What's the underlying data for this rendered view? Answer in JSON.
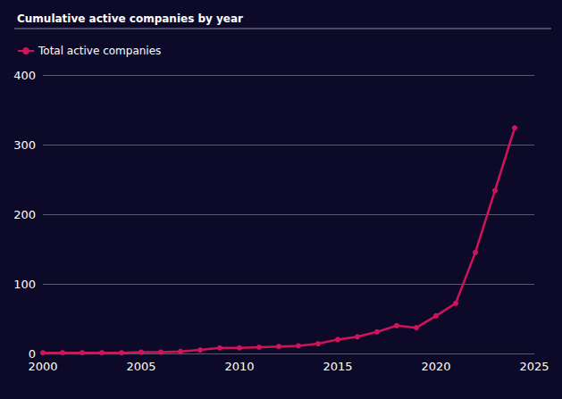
{
  "chart_data": {
    "type": "line",
    "title": "Cumulative active companies by year",
    "x": [
      2000,
      2001,
      2002,
      2003,
      2004,
      2005,
      2006,
      2007,
      2008,
      2009,
      2010,
      2011,
      2012,
      2013,
      2014,
      2015,
      2016,
      2017,
      2018,
      2019,
      2020,
      2021,
      2022,
      2023,
      2024
    ],
    "series": [
      {
        "name": "Total active companies",
        "color": "#d1145a",
        "values": [
          1,
          1,
          1,
          1,
          1,
          2,
          2,
          3,
          5,
          8,
          8,
          9,
          10,
          11,
          14,
          20,
          24,
          31,
          40,
          37,
          54,
          72,
          145,
          234,
          324
        ]
      }
    ],
    "xlim": [
      2000,
      2025
    ],
    "xticks": [
      2000,
      2005,
      2010,
      2015,
      2020,
      2025
    ],
    "ylim": [
      0,
      400
    ],
    "yticks": [
      0,
      100,
      200,
      300,
      400
    ],
    "grid": true,
    "legend": "top-left",
    "marker": "circle",
    "line_style": "solid"
  }
}
